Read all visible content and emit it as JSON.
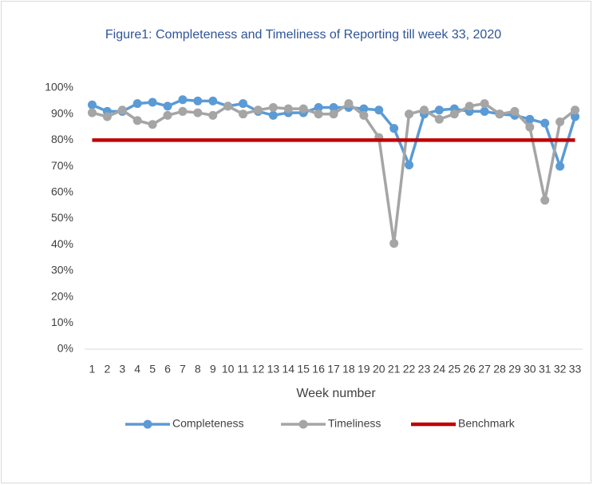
{
  "chart_data": {
    "type": "line",
    "title": "Figure1: Completeness and Timeliness of Reporting till week 33, 2020",
    "x_label": "Week number",
    "categories": [
      "1",
      "2",
      "3",
      "4",
      "5",
      "6",
      "7",
      "8",
      "9",
      "10",
      "11",
      "12",
      "13",
      "14",
      "15",
      "16",
      "17",
      "18",
      "19",
      "20",
      "21",
      "22",
      "23",
      "24",
      "25",
      "26",
      "27",
      "28",
      "29",
      "30",
      "31",
      "32",
      "33"
    ],
    "series": [
      {
        "name": "Completeness",
        "color": "#5b9bd5",
        "markers": true,
        "values": [
          93.5,
          91,
          91,
          94,
          94.5,
          93,
          95.5,
          95,
          95,
          93,
          94,
          91,
          89.5,
          90.5,
          90.5,
          92.5,
          92.5,
          92.5,
          92,
          91.5,
          84.5,
          70.5,
          90,
          91.5,
          92,
          91,
          91,
          90,
          89.5,
          88,
          86.5,
          70,
          89
        ]
      },
      {
        "name": "Timeliness",
        "color": "#a5a5a5",
        "markers": true,
        "values": [
          90.5,
          89,
          91.5,
          87.5,
          86,
          89.5,
          91,
          90.5,
          89.5,
          93,
          90,
          91.5,
          92.5,
          92,
          92,
          90,
          90,
          94,
          89.5,
          81,
          40.5,
          90,
          91.5,
          88,
          90,
          93,
          94,
          90,
          91,
          85,
          57,
          87,
          91.5
        ]
      },
      {
        "name": "Benchmark",
        "color": "#c00000",
        "markers": false,
        "values": [
          80,
          80,
          80,
          80,
          80,
          80,
          80,
          80,
          80,
          80,
          80,
          80,
          80,
          80,
          80,
          80,
          80,
          80,
          80,
          80,
          80,
          80,
          80,
          80,
          80,
          80,
          80,
          80,
          80,
          80,
          80,
          80,
          80
        ]
      }
    ],
    "ylim": [
      0,
      100
    ],
    "yticks": [
      {
        "value": 0,
        "label": "0%"
      },
      {
        "value": 10,
        "label": "10%"
      },
      {
        "value": 20,
        "label": "20%"
      },
      {
        "value": 30,
        "label": "30%"
      },
      {
        "value": 40,
        "label": "40%"
      },
      {
        "value": 50,
        "label": "50%"
      },
      {
        "value": 60,
        "label": "60%"
      },
      {
        "value": 70,
        "label": "70%"
      },
      {
        "value": 80,
        "label": "80%"
      },
      {
        "value": 90,
        "label": "90%"
      },
      {
        "value": 100,
        "label": "100%"
      }
    ],
    "grid": false,
    "legend": "bottom"
  }
}
